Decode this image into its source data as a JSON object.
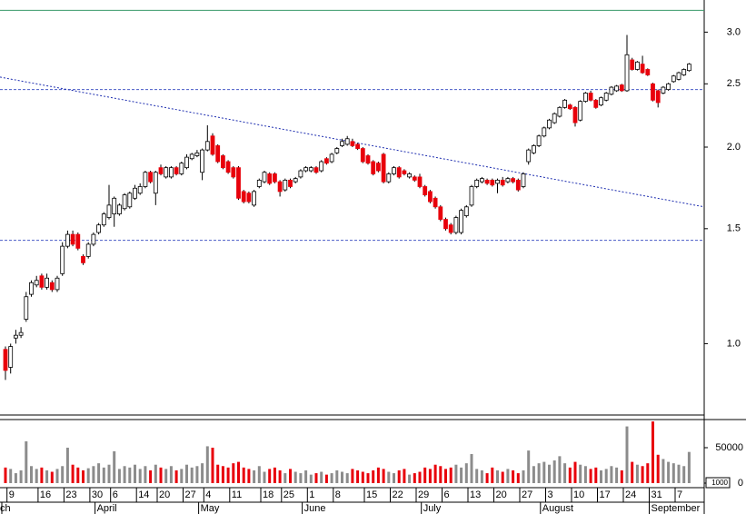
{
  "chart_data": {
    "type": "candlestick",
    "log_scale": true,
    "up_color": "#ffffff",
    "down_color": "#e8000b",
    "outline_color": "#000000",
    "volume_up_color": "#8c8c8c",
    "volume_down_color": "#e8000b",
    "open": [
      0.98,
      0.92,
      1.02,
      1.03,
      1.09,
      1.19,
      1.23,
      1.27,
      1.22,
      1.24,
      1.21,
      1.28,
      1.41,
      1.47,
      1.47,
      1.36,
      1.36,
      1.42,
      1.48,
      1.52,
      1.56,
      1.58,
      1.58,
      1.61,
      1.62,
      1.67,
      1.7,
      1.74,
      1.83,
      1.7,
      1.86,
      1.8,
      1.8,
      1.86,
      1.82,
      1.86,
      1.92,
      1.94,
      1.83,
      1.98,
      2.08,
      2.01,
      1.94,
      1.9,
      1.86,
      1.86,
      1.71,
      1.7,
      1.63,
      1.74,
      1.77,
      1.82,
      1.82,
      1.77,
      1.72,
      1.78,
      1.77,
      1.8,
      1.84,
      1.84,
      1.86,
      1.84,
      1.92,
      1.9,
      1.96,
      2.01,
      2.02,
      2.04,
      2.02,
      1.99,
      1.94,
      1.9,
      1.89,
      1.95,
      1.77,
      1.82,
      1.86,
      1.84,
      1.8,
      1.8,
      1.8,
      1.74,
      1.71,
      1.67,
      1.62,
      1.55,
      1.52,
      1.48,
      1.48,
      1.57,
      1.63,
      1.74,
      1.77,
      1.78,
      1.78,
      1.76,
      1.78,
      1.77,
      1.79,
      1.78,
      1.74,
      1.9,
      1.96,
      2.01,
      2.08,
      2.14,
      2.18,
      2.23,
      2.3,
      2.32,
      2.3,
      2.2,
      2.35,
      2.42,
      2.36,
      2.32,
      2.36,
      2.41,
      2.44,
      2.49,
      2.44,
      2.72,
      2.63,
      2.68,
      2.63,
      2.5,
      2.44,
      2.42,
      2.45,
      2.52,
      2.54,
      2.58,
      2.62
    ],
    "high": [
      0.99,
      1.0,
      1.05,
      1.06,
      1.2,
      1.25,
      1.27,
      1.28,
      1.28,
      1.25,
      1.27,
      1.43,
      1.49,
      1.49,
      1.48,
      1.37,
      1.43,
      1.48,
      1.53,
      1.59,
      1.75,
      1.68,
      1.64,
      1.7,
      1.71,
      1.75,
      1.76,
      1.84,
      1.84,
      1.84,
      1.88,
      1.87,
      1.87,
      1.87,
      1.9,
      1.95,
      1.96,
      1.98,
      1.99,
      2.16,
      2.1,
      2.02,
      1.95,
      1.91,
      1.87,
      1.87,
      1.72,
      1.71,
      1.72,
      1.79,
      1.84,
      1.83,
      1.83,
      1.78,
      1.79,
      1.79,
      1.8,
      1.85,
      1.87,
      1.87,
      1.87,
      1.91,
      1.93,
      1.96,
      2.0,
      2.06,
      2.08,
      2.06,
      2.03,
      2.0,
      1.95,
      1.91,
      1.9,
      1.96,
      1.83,
      1.87,
      1.87,
      1.85,
      1.83,
      1.81,
      1.82,
      1.75,
      1.72,
      1.68,
      1.63,
      1.56,
      1.53,
      1.57,
      1.61,
      1.63,
      1.75,
      1.79,
      1.8,
      1.79,
      1.79,
      1.79,
      1.8,
      1.8,
      1.8,
      1.79,
      1.83,
      1.99,
      2.02,
      2.09,
      2.15,
      2.21,
      2.26,
      2.31,
      2.37,
      2.33,
      2.31,
      2.36,
      2.43,
      2.44,
      2.37,
      2.39,
      2.43,
      2.48,
      2.49,
      2.5,
      2.97,
      2.74,
      2.71,
      2.76,
      2.64,
      2.51,
      2.45,
      2.48,
      2.51,
      2.58,
      2.61,
      2.64,
      2.69
    ],
    "low": [
      0.88,
      0.9,
      1.0,
      1.02,
      1.08,
      1.18,
      1.22,
      1.21,
      1.21,
      1.2,
      1.2,
      1.27,
      1.4,
      1.41,
      1.39,
      1.32,
      1.35,
      1.41,
      1.47,
      1.51,
      1.55,
      1.51,
      1.57,
      1.6,
      1.61,
      1.66,
      1.69,
      1.73,
      1.76,
      1.63,
      1.81,
      1.79,
      1.79,
      1.81,
      1.81,
      1.85,
      1.91,
      1.93,
      1.78,
      1.97,
      1.94,
      1.89,
      1.85,
      1.82,
      1.79,
      1.66,
      1.64,
      1.64,
      1.62,
      1.73,
      1.76,
      1.75,
      1.76,
      1.68,
      1.71,
      1.73,
      1.76,
      1.79,
      1.83,
      1.83,
      1.82,
      1.83,
      1.88,
      1.89,
      1.95,
      2.0,
      2.01,
      2.0,
      1.98,
      1.89,
      1.88,
      1.81,
      1.83,
      1.76,
      1.76,
      1.81,
      1.79,
      1.81,
      1.79,
      1.77,
      1.73,
      1.68,
      1.64,
      1.61,
      1.54,
      1.49,
      1.47,
      1.47,
      1.47,
      1.56,
      1.62,
      1.73,
      1.76,
      1.75,
      1.74,
      1.7,
      1.74,
      1.76,
      1.76,
      1.71,
      1.73,
      1.88,
      1.95,
      2.0,
      2.07,
      2.13,
      2.17,
      2.22,
      2.29,
      2.28,
      2.15,
      2.19,
      2.34,
      2.35,
      2.29,
      2.31,
      2.35,
      2.4,
      2.43,
      2.43,
      2.43,
      2.62,
      2.62,
      2.59,
      2.57,
      2.35,
      2.3,
      2.41,
      2.44,
      2.51,
      2.53,
      2.57,
      2.61
    ],
    "close": [
      0.91,
      0.99,
      1.03,
      1.04,
      1.18,
      1.24,
      1.25,
      1.22,
      1.26,
      1.21,
      1.26,
      1.41,
      1.47,
      1.42,
      1.4,
      1.33,
      1.42,
      1.47,
      1.52,
      1.58,
      1.63,
      1.67,
      1.63,
      1.69,
      1.7,
      1.73,
      1.74,
      1.83,
      1.77,
      1.83,
      1.82,
      1.86,
      1.86,
      1.82,
      1.89,
      1.93,
      1.95,
      1.96,
      1.98,
      2.04,
      1.95,
      1.9,
      1.86,
      1.83,
      1.8,
      1.67,
      1.65,
      1.65,
      1.71,
      1.78,
      1.83,
      1.76,
      1.77,
      1.71,
      1.78,
      1.74,
      1.79,
      1.84,
      1.86,
      1.86,
      1.83,
      1.9,
      1.89,
      1.95,
      1.99,
      2.04,
      2.06,
      2.01,
      1.99,
      1.9,
      1.89,
      1.82,
      1.84,
      1.77,
      1.82,
      1.86,
      1.8,
      1.82,
      1.82,
      1.78,
      1.74,
      1.69,
      1.65,
      1.62,
      1.55,
      1.5,
      1.48,
      1.56,
      1.6,
      1.62,
      1.74,
      1.78,
      1.79,
      1.76,
      1.75,
      1.78,
      1.75,
      1.79,
      1.77,
      1.72,
      1.82,
      1.98,
      2.01,
      2.08,
      2.14,
      2.2,
      2.25,
      2.3,
      2.36,
      2.29,
      2.18,
      2.35,
      2.42,
      2.36,
      2.3,
      2.38,
      2.42,
      2.47,
      2.48,
      2.44,
      2.77,
      2.63,
      2.7,
      2.6,
      2.58,
      2.36,
      2.34,
      2.47,
      2.5,
      2.57,
      2.6,
      2.63,
      2.68
    ],
    "volume": [
      22000,
      20000,
      14000,
      18000,
      59000,
      24000,
      20000,
      22000,
      18000,
      16000,
      20000,
      24000,
      50000,
      26000,
      22000,
      18000,
      21000,
      24000,
      28000,
      22000,
      26000,
      45000,
      20000,
      24000,
      22000,
      26000,
      20000,
      24000,
      18000,
      26000,
      22000,
      20000,
      24000,
      18000,
      20000,
      26000,
      22000,
      24000,
      28000,
      52000,
      50000,
      26000,
      24000,
      22000,
      28000,
      30000,
      22000,
      20000,
      18000,
      24000,
      16000,
      20000,
      22000,
      18000,
      14000,
      20000,
      16000,
      14000,
      18000,
      12000,
      14000,
      16000,
      12000,
      14000,
      18000,
      16000,
      14000,
      20000,
      18000,
      16000,
      14000,
      18000,
      22000,
      20000,
      16000,
      14000,
      18000,
      20000,
      12000,
      14000,
      16000,
      22000,
      20000,
      26000,
      24000,
      20000,
      22000,
      26000,
      22000,
      28000,
      41000,
      20000,
      18000,
      14000,
      22000,
      18000,
      16000,
      20000,
      18000,
      14000,
      18000,
      46000,
      24000,
      28000,
      30000,
      26000,
      32000,
      38000,
      28000,
      22000,
      30000,
      26000,
      24000,
      20000,
      22000,
      18000,
      20000,
      24000,
      22000,
      18000,
      80000,
      30000,
      26000,
      24000,
      28000,
      87000,
      40000,
      34000,
      30000,
      28000,
      26000,
      24000,
      44000
    ],
    "ylim": [
      0.78,
      3.36
    ],
    "yticks": [
      {
        "value": 1,
        "label": "1.0"
      },
      1.5,
      {
        "value": 2,
        "label": "2.0"
      },
      2.5,
      {
        "value": 3,
        "label": "3.0"
      }
    ],
    "volume_ylim": [
      0,
      89700
    ],
    "volume_yticks": [
      0,
      50000
    ],
    "volume_unit_label": "1000",
    "day_ticks": [
      {
        "value": 1,
        "label": "9"
      },
      {
        "value": 7,
        "label": "16"
      },
      {
        "value": 12,
        "label": "23"
      },
      {
        "value": 17,
        "label": "30"
      },
      {
        "value": 21,
        "label": "6"
      },
      {
        "value": 26,
        "label": "14"
      },
      {
        "value": 30,
        "label": "20"
      },
      {
        "value": 35,
        "label": "27"
      },
      {
        "value": 39,
        "label": "4"
      },
      {
        "value": 44,
        "label": "11"
      },
      {
        "value": 50,
        "label": "18"
      },
      {
        "value": 54,
        "label": "25"
      },
      {
        "value": 59,
        "label": "1"
      },
      {
        "value": 64,
        "label": "8"
      },
      {
        "value": 70,
        "label": "15"
      },
      {
        "value": 75,
        "label": "22"
      },
      {
        "value": 80,
        "label": "29"
      },
      {
        "value": 85,
        "label": "6"
      },
      {
        "value": 90,
        "label": "13"
      },
      {
        "value": 95,
        "label": "20"
      },
      {
        "value": 100,
        "label": "27"
      },
      {
        "value": 105,
        "label": "3"
      },
      {
        "value": 110,
        "label": "10"
      },
      {
        "value": 115,
        "label": "17"
      },
      {
        "value": 120,
        "label": "24"
      },
      {
        "value": 125,
        "label": "31"
      },
      {
        "value": 130,
        "label": "7"
      }
    ],
    "month_ticks": [
      {
        "value": 0,
        "label": "ch"
      },
      {
        "value": 18,
        "label": "April"
      },
      {
        "value": 38,
        "label": "May"
      },
      {
        "value": 58,
        "label": "June"
      },
      {
        "value": 81,
        "label": "July"
      },
      {
        "value": 104,
        "label": "August"
      },
      {
        "value": 125,
        "label": "September"
      }
    ],
    "reference_lines": [
      {
        "value": 3.24,
        "color": "#3a9a6a",
        "dashed": false
      },
      {
        "value": 2.45,
        "color": "#4a5cc8",
        "dashed": true
      },
      {
        "value": 1.44,
        "color": "#4a5cc8",
        "dashed": true
      }
    ],
    "trend_line": {
      "values": [
        2.56,
        1.62
      ],
      "color": "#1f2fb0"
    }
  }
}
